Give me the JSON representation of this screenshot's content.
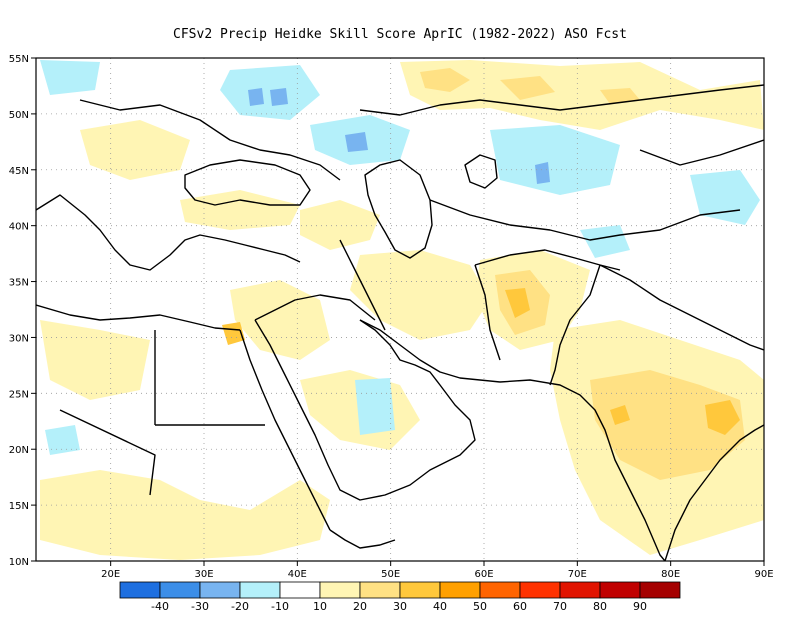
{
  "title": "CFSv2 Precip Heidke Skill Score AprIC (1982-2022) ASO Fcst",
  "map": {
    "lon_range": [
      12,
      90
    ],
    "lat_range": [
      10,
      55
    ],
    "lon_ticks": [
      "20E",
      "30E",
      "40E",
      "50E",
      "60E",
      "70E",
      "80E",
      "90E"
    ],
    "lat_ticks": [
      "10N",
      "15N",
      "20N",
      "25N",
      "30N",
      "35N",
      "40N",
      "45N",
      "50N",
      "55N"
    ],
    "grid": "dotted gray at 10 deg lon / 5 deg lat",
    "coastline_color": "#000000",
    "anomaly_regions": [
      {
        "name": "eastern-india",
        "lon": 86,
        "lat": 23,
        "level": 40
      },
      {
        "name": "afghanistan",
        "lon": 63,
        "lat": 33,
        "level": 40
      },
      {
        "name": "sinai",
        "lon": 33,
        "lat": 30.5,
        "level": 40
      },
      {
        "name": "central-india",
        "lon": 76,
        "lat": 21,
        "level": 30
      },
      {
        "name": "kazakhstan-north",
        "lon": 58,
        "lat": 53,
        "level": 20
      },
      {
        "name": "west-sahara",
        "lon": 18,
        "lat": 28,
        "level": 20
      },
      {
        "name": "sudan-chad",
        "lon": 22,
        "lat": 13,
        "level": 20
      },
      {
        "name": "arabia-north",
        "lon": 42,
        "lat": 30,
        "level": 20
      },
      {
        "name": "ukraine-blue",
        "lon": 24,
        "lat": 51,
        "level": -20
      },
      {
        "name": "caspian-north-blue",
        "lon": 47,
        "lat": 48,
        "level": -20
      },
      {
        "name": "kazakh-east-blue",
        "lon": 74,
        "lat": 45,
        "level": -20
      },
      {
        "name": "yemen-blue",
        "lon": 48,
        "lat": 20,
        "level": -10
      },
      {
        "name": "tibet-north-blue",
        "lon": 77,
        "lat": 39,
        "level": -10
      }
    ]
  },
  "colorbar": {
    "labels": [
      "-40",
      "-30",
      "-20",
      "-10",
      "10",
      "20",
      "30",
      "40",
      "50",
      "60",
      "70",
      "80",
      "90"
    ],
    "colors": [
      "#1e6fe0",
      "#3c8ee8",
      "#78b4f0",
      "#b4f0fa",
      "#ffffff",
      "#fff5b4",
      "#ffe184",
      "#ffc83c",
      "#ffa000",
      "#ff6400",
      "#ff3200",
      "#e11400",
      "#c00000",
      "#a50000"
    ]
  }
}
